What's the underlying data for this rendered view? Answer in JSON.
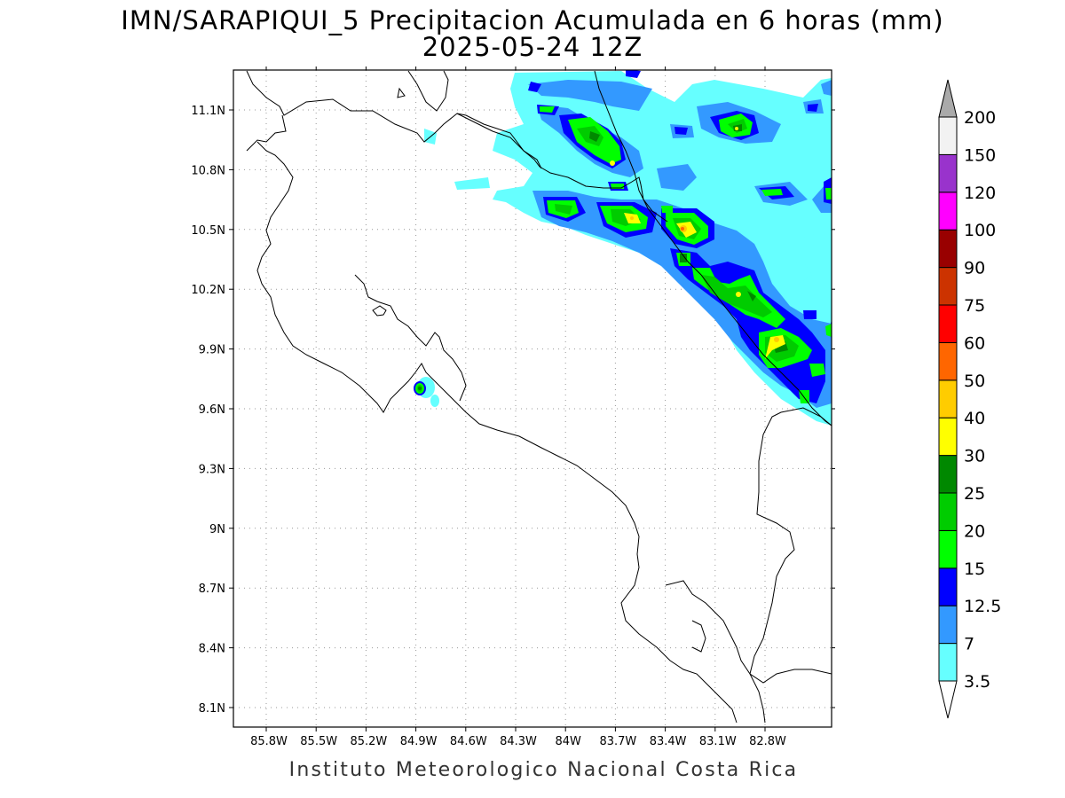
{
  "title_line1": "IMN/SARAPIQUI_5 Precipitacion Acumulada en 6 horas (mm)",
  "title_line2": "2025-05-24 12Z",
  "credit": "Instituto Meteorologico Nacional Costa Rica",
  "lon_labels": [
    "85.8W",
    "85.5W",
    "85.2W",
    "84.9W",
    "84.6W",
    "84.3W",
    "84W",
    "83.7W",
    "83.4W",
    "83.1W",
    "82.8W"
  ],
  "lat_labels": [
    "11.1N",
    "10.8N",
    "10.5N",
    "10.2N",
    "9.9N",
    "9.6N",
    "9.3N",
    "9N",
    "8.7N",
    "8.4N",
    "8.1N"
  ],
  "colorbar": {
    "labels": [
      "3.5",
      "7",
      "12.5",
      "15",
      "20",
      "25",
      "30",
      "40",
      "50",
      "60",
      "75",
      "90",
      "100",
      "120",
      "150",
      "200"
    ],
    "colors": [
      "#ffffff",
      "#66ffff",
      "#3399ff",
      "#0000ff",
      "#00ff00",
      "#00cc00",
      "#008800",
      "#ffff00",
      "#ffcc00",
      "#ff6600",
      "#ff0000",
      "#cc3300",
      "#990000",
      "#ff00ff",
      "#9933cc",
      "#f2f2f2",
      "#aaaaaa"
    ]
  },
  "precip_colors": {
    "light": "#66ffff",
    "medium": "#3399ff",
    "blue": "#0000ff",
    "green_light": "#00ff00",
    "green": "#00cc00",
    "green_dark": "#008800",
    "yellow": "#ffff00",
    "orange": "#ffcc00",
    "red": "#ff6600"
  }
}
